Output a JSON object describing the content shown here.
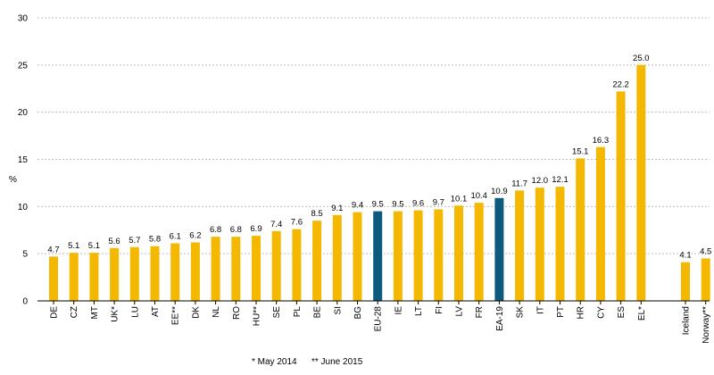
{
  "chart_data": {
    "type": "bar",
    "ylabel": "%",
    "ylim": [
      0,
      30
    ],
    "yticks": [
      "0",
      "5",
      "10",
      "15",
      "20",
      "25",
      "30"
    ],
    "grid": true,
    "categories": [
      "DE",
      "CZ",
      "MT",
      "UK*",
      "LU",
      "AT",
      "EE**",
      "DK",
      "NL",
      "RO",
      "HU**",
      "SE",
      "PL",
      "BE",
      "SI",
      "BG",
      "EU-28",
      "IE",
      "LT",
      "FI",
      "LV",
      "FR",
      "EA-19",
      "SK",
      "IT",
      "PT",
      "HR",
      "CY",
      "ES",
      "EL*",
      "Iceland",
      "Norway**"
    ],
    "values": [
      4.7,
      5.1,
      5.1,
      5.6,
      5.7,
      5.8,
      6.1,
      6.2,
      6.8,
      6.8,
      6.9,
      7.4,
      7.6,
      8.5,
      9.1,
      9.4,
      9.5,
      9.5,
      9.6,
      9.7,
      10.1,
      10.4,
      10.9,
      11.7,
      12.0,
      12.1,
      15.1,
      16.3,
      22.2,
      25.0,
      4.1,
      4.5
    ],
    "value_labels": [
      "4.7",
      "5.1",
      "5.1",
      "5.6",
      "5.7",
      "5.8",
      "6.1",
      "6.2",
      "6.8",
      "6.8",
      "6.9",
      "7.4",
      "7.6",
      "8.5",
      "9.1",
      "9.4",
      "9.5",
      "9.5",
      "9.6",
      "9.7",
      "10.1",
      "10.4",
      "10.9",
      "11.7",
      "12.0",
      "12.1",
      "15.1",
      "16.3",
      "22.2",
      "25.0",
      "4.1",
      "4.5"
    ],
    "highlighted": [
      "EU-28",
      "EA-19"
    ],
    "colors": {
      "bar": "#f5b800",
      "highlight": "#0e5a7d",
      "grid": "#bfbfbf",
      "axis": "#000000"
    }
  },
  "footnotes": {
    "note1": "*  May 2014",
    "note2": "** June 2015"
  }
}
